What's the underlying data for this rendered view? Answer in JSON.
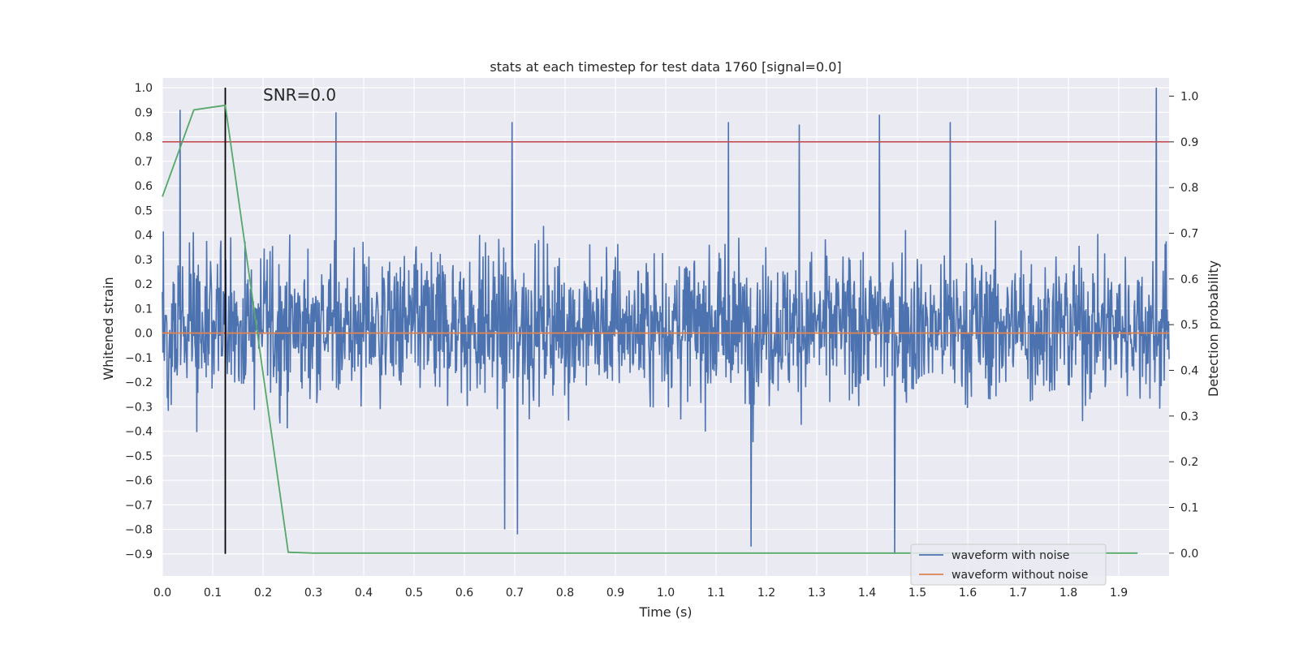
{
  "chart_data": {
    "type": "line",
    "title": "stats at each timestep for test data 1760 [signal=0.0]",
    "xlabel": "Time (s)",
    "ylabel": "Whitened strain",
    "y2label": "Detection probability",
    "annotation": "SNR=0.0",
    "xlim": [
      0.0,
      2.0
    ],
    "ylim": [
      -0.99,
      1.04
    ],
    "y2lim": [
      -0.05,
      1.04
    ],
    "xticks": [
      "0.0",
      "0.1",
      "0.2",
      "0.3",
      "0.4",
      "0.5",
      "0.6",
      "0.7",
      "0.8",
      "0.9",
      "1.0",
      "1.1",
      "1.2",
      "1.3",
      "1.4",
      "1.5",
      "1.6",
      "1.7",
      "1.8",
      "1.9"
    ],
    "yticks": [
      "−0.9",
      "−0.8",
      "−0.7",
      "−0.6",
      "−0.5",
      "−0.4",
      "−0.3",
      "−0.2",
      "−0.1",
      "0.0",
      "0.1",
      "0.2",
      "0.3",
      "0.4",
      "0.5",
      "0.6",
      "0.7",
      "0.8",
      "0.9",
      "1.0"
    ],
    "y2ticks": [
      "0.0",
      "0.1",
      "0.2",
      "0.3",
      "0.4",
      "0.5",
      "0.6",
      "0.7",
      "0.8",
      "0.9",
      "1.0"
    ],
    "grid": true,
    "legend_position": "lower-right",
    "series": [
      {
        "name": "waveform with noise",
        "color": "#4c72b0",
        "axis": "left",
        "n_samples": 2048,
        "noise_std": 0.27,
        "peaks": [
          {
            "x": 0.035,
            "y": 0.91
          },
          {
            "x": 0.345,
            "y": 0.9
          },
          {
            "x": 0.695,
            "y": 0.86
          },
          {
            "x": 1.125,
            "y": 0.86
          },
          {
            "x": 1.265,
            "y": 0.85
          },
          {
            "x": 1.425,
            "y": 0.89
          },
          {
            "x": 1.565,
            "y": 0.86
          },
          {
            "x": 1.975,
            "y": 1.0
          },
          {
            "x": 1.455,
            "y": -0.9
          },
          {
            "x": 1.17,
            "y": -0.87
          },
          {
            "x": 0.705,
            "y": -0.82
          },
          {
            "x": 0.68,
            "y": -0.8
          }
        ]
      },
      {
        "name": "waveform without noise",
        "color": "#dd8452",
        "axis": "left",
        "x": [
          0.0,
          2.0
        ],
        "y": [
          0.0,
          0.0
        ]
      },
      {
        "name": "",
        "color": "#55a868",
        "axis": "right",
        "x": [
          0.0,
          0.0625,
          0.125,
          0.25,
          0.3,
          0.5,
          1.0,
          1.5,
          1.9375
        ],
        "y": [
          0.78,
          0.97,
          0.98,
          0.002,
          0.0,
          0.0,
          0.0,
          0.0,
          0.0
        ]
      }
    ],
    "threshold": {
      "axis": "right",
      "value": 0.9,
      "color": "#c44e52"
    },
    "marker": {
      "x": 0.125,
      "y_from": -0.9,
      "y_to": 1.0,
      "color": "#000000"
    }
  }
}
